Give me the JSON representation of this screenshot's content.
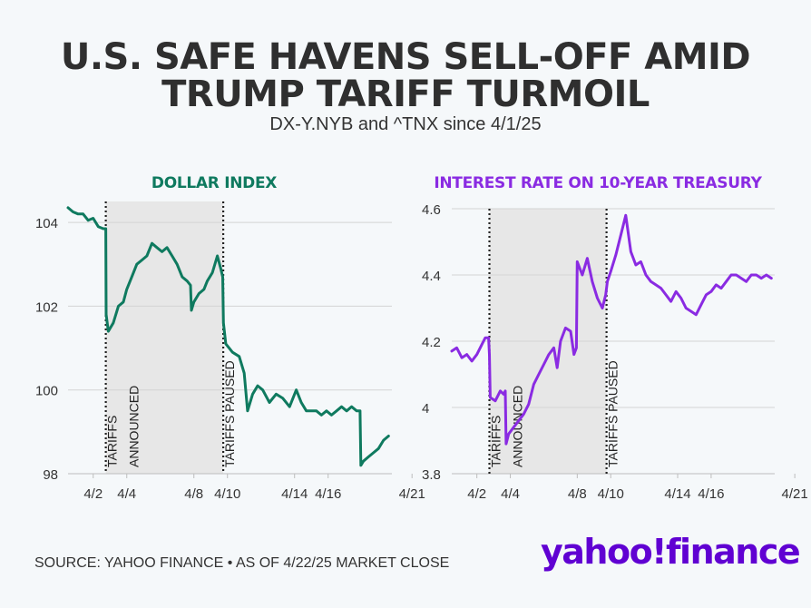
{
  "header": {
    "title_line1": "U.S. SAFE HAVENS SELL-OFF AMID",
    "title_line2": "TRUMP TARIFF TURMOIL",
    "subtitle": "DX-Y.NYB and ^TNX since 4/1/25"
  },
  "footer": {
    "source": "SOURCE: YAHOO FINANCE • AS OF 4/22/25 MARKET CLOSE",
    "logo": "yahoo!finance"
  },
  "colors": {
    "dollar": "#0f7a5f",
    "treasury": "#8a2be2",
    "shade": "#e7e7e7",
    "logo": "#6001d2"
  },
  "chart_data": [
    {
      "type": "line",
      "title": "DOLLAR INDEX",
      "xlabel": "",
      "ylabel": "",
      "ylim": [
        98,
        104.5
      ],
      "yticks": [
        98,
        100,
        102,
        104
      ],
      "ytick_labels": [
        "98",
        "100",
        "102",
        "104"
      ],
      "xticks": [
        1.5,
        3.5,
        7.5,
        9.5,
        13.5,
        15.5,
        20.5
      ],
      "xtick_labels": [
        "4/2",
        "4/4",
        "4/8",
        "4/10",
        "4/14",
        "4/16",
        "4/21"
      ],
      "grid": true,
      "shaded_range": [
        2.25,
        9.25
      ],
      "annotations": [
        {
          "x": 2.25,
          "lines": [
            "TARIFFS",
            "ANNOUNCED"
          ]
        },
        {
          "x": 9.25,
          "lines": [
            "TARIFFS PAUSED"
          ]
        }
      ],
      "series": [
        {
          "x": [
            0,
            0.3,
            0.6,
            0.9,
            1.2,
            1.5,
            1.8,
            2.1,
            2.25,
            2.27,
            2.4,
            2.7,
            3.0,
            3.3,
            3.5,
            3.8,
            4.1,
            4.4,
            4.7,
            5.0,
            5.3,
            5.6,
            5.9,
            6.2,
            6.5,
            6.8,
            7.1,
            7.3,
            7.35,
            7.5,
            7.8,
            8.1,
            8.3,
            8.6,
            8.9,
            9.1,
            9.22,
            9.26,
            9.4,
            9.8,
            10.2,
            10.5,
            10.7,
            11.0,
            11.3,
            11.6,
            12.0,
            12.4,
            12.8,
            13.2,
            13.6,
            13.9,
            14.2,
            14.5,
            14.8,
            15.1,
            15.4,
            15.7,
            16.0,
            16.3,
            16.6,
            16.9,
            17.2,
            17.4,
            17.45,
            17.6,
            17.9,
            18.2,
            18.5,
            18.8,
            19.1
          ],
          "y": [
            104.35,
            104.25,
            104.2,
            104.2,
            104.05,
            104.1,
            103.9,
            103.85,
            103.85,
            101.8,
            101.4,
            101.6,
            102.0,
            102.1,
            102.4,
            102.7,
            103.0,
            103.1,
            103.2,
            103.5,
            103.4,
            103.3,
            103.4,
            103.2,
            103.0,
            102.7,
            102.6,
            102.5,
            101.9,
            102.1,
            102.3,
            102.4,
            102.6,
            102.8,
            103.2,
            102.9,
            102.7,
            101.6,
            101.1,
            100.9,
            100.8,
            100.4,
            99.5,
            99.9,
            100.1,
            100.0,
            99.7,
            99.9,
            99.8,
            99.6,
            100.0,
            99.7,
            99.5,
            99.5,
            99.5,
            99.4,
            99.5,
            99.4,
            99.5,
            99.6,
            99.5,
            99.6,
            99.5,
            99.5,
            98.2,
            98.3,
            98.4,
            98.5,
            98.6,
            98.8,
            98.9
          ]
        }
      ]
    },
    {
      "type": "line",
      "title": "INTEREST RATE ON 10-YEAR TREASURY",
      "xlabel": "",
      "ylabel": "",
      "ylim": [
        3.8,
        4.6
      ],
      "yticks": [
        3.8,
        4.0,
        4.2,
        4.4,
        4.6
      ],
      "ytick_labels": [
        "3.8",
        "4",
        "4.2",
        "4.4",
        "4.6"
      ],
      "xticks": [
        1.5,
        3.5,
        7.5,
        9.5,
        13.5,
        15.5,
        20.5
      ],
      "xtick_labels": [
        "4/2",
        "4/4",
        "4/8",
        "4/10",
        "4/14",
        "4/16",
        "4/21"
      ],
      "grid": true,
      "shaded_range": [
        2.25,
        9.25
      ],
      "annotations": [
        {
          "x": 2.25,
          "lines": [
            "TARIFFS",
            "ANNOUNCED"
          ]
        },
        {
          "x": 9.25,
          "lines": [
            "TARIFFS PAUSED"
          ]
        }
      ],
      "series": [
        {
          "x": [
            0,
            0.3,
            0.6,
            0.9,
            1.2,
            1.5,
            1.8,
            2.0,
            2.2,
            2.25,
            2.3,
            2.6,
            2.9,
            3.1,
            3.2,
            3.25,
            3.4,
            3.7,
            4.0,
            4.3,
            4.6,
            4.9,
            5.2,
            5.5,
            5.8,
            6.1,
            6.3,
            6.5,
            6.8,
            7.1,
            7.3,
            7.45,
            7.5,
            7.8,
            8.1,
            8.4,
            8.7,
            9.0,
            9.2,
            9.3,
            9.5,
            9.8,
            10.1,
            10.4,
            10.7,
            11.0,
            11.3,
            11.6,
            11.9,
            12.2,
            12.5,
            12.8,
            13.1,
            13.4,
            13.7,
            14.0,
            14.3,
            14.6,
            14.9,
            15.2,
            15.5,
            15.8,
            16.1,
            16.4,
            16.7,
            17.0,
            17.3,
            17.6,
            17.9,
            18.2,
            18.5,
            18.8,
            19.1
          ],
          "y": [
            4.17,
            4.18,
            4.15,
            4.16,
            4.14,
            4.16,
            4.19,
            4.21,
            4.21,
            4.16,
            4.03,
            4.02,
            4.05,
            4.04,
            4.05,
            3.89,
            3.92,
            3.94,
            3.96,
            3.98,
            4.01,
            4.07,
            4.1,
            4.13,
            4.16,
            4.18,
            4.12,
            4.2,
            4.24,
            4.23,
            4.16,
            4.18,
            4.44,
            4.4,
            4.45,
            4.38,
            4.33,
            4.3,
            4.34,
            4.38,
            4.41,
            4.46,
            4.52,
            4.58,
            4.47,
            4.43,
            4.44,
            4.4,
            4.38,
            4.37,
            4.36,
            4.34,
            4.32,
            4.35,
            4.33,
            4.3,
            4.29,
            4.28,
            4.31,
            4.34,
            4.35,
            4.37,
            4.36,
            4.38,
            4.4,
            4.4,
            4.39,
            4.38,
            4.4,
            4.4,
            4.39,
            4.4,
            4.39
          ]
        }
      ]
    }
  ]
}
